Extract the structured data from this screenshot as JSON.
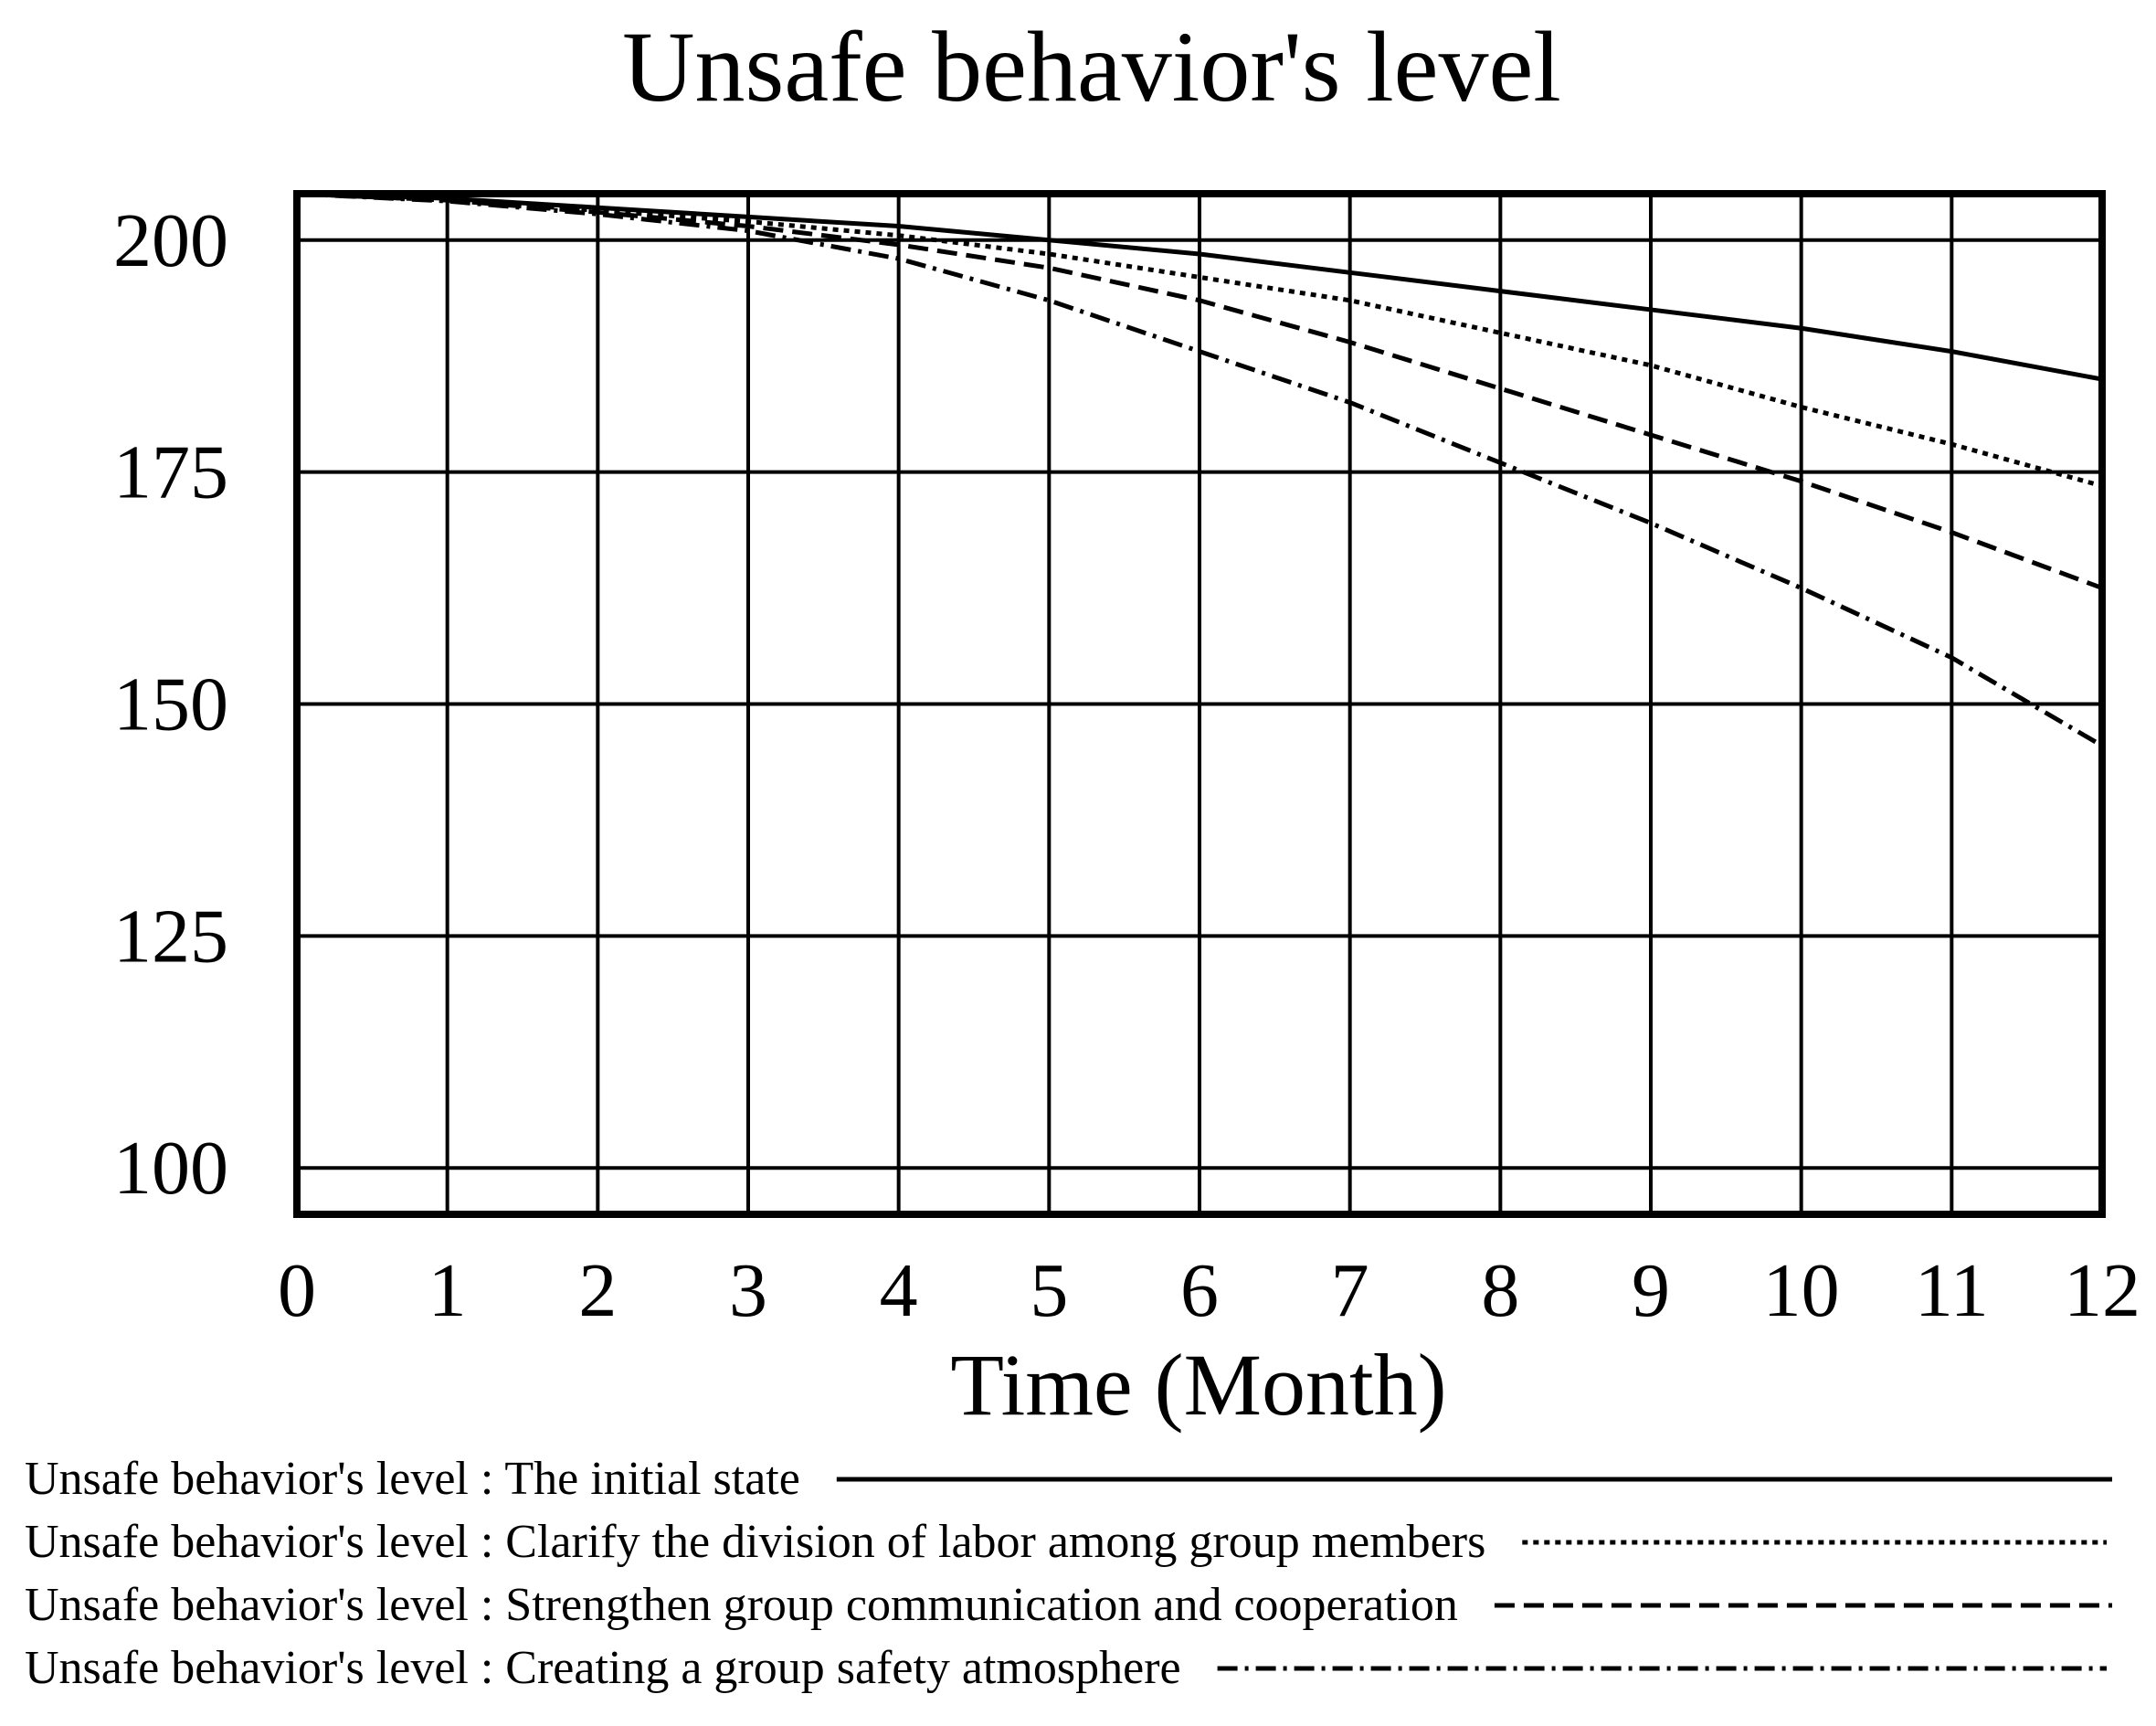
{
  "chart_data": {
    "type": "line",
    "title": "Unsafe behavior's level",
    "xlabel": "Time (Month)",
    "ylabel": "",
    "xlim": [
      0,
      12
    ],
    "ylim": [
      95,
      205
    ],
    "x_ticks": [
      "0",
      "1",
      "2",
      "3",
      "4",
      "5",
      "6",
      "7",
      "8",
      "9",
      "10",
      "11",
      "12"
    ],
    "y_ticks": [
      "100",
      "125",
      "150",
      "175",
      "200"
    ],
    "y_tick_values": [
      100,
      125,
      150,
      175,
      200
    ],
    "grid": true,
    "legend_position": "bottom",
    "x": [
      0,
      1,
      2,
      3,
      4,
      5,
      6,
      7,
      8,
      9,
      10,
      11,
      12
    ],
    "series": [
      {
        "name": "Unsafe behavior's level : The initial state",
        "style": "solid",
        "values": [
          205,
          204.5,
          203.5,
          202.5,
          201.5,
          200,
          198.5,
          196.5,
          194.5,
          192.5,
          190.5,
          188,
          185
        ]
      },
      {
        "name": "Unsafe behavior's level : Clarify the division of labor among group members",
        "style": "dotted",
        "values": [
          205,
          204.3,
          203.2,
          202,
          200.5,
          198.5,
          196,
          193.5,
          190,
          186.5,
          182,
          178,
          173.5
        ]
      },
      {
        "name": "Unsafe behavior's level : Strengthen group communication and cooperation",
        "style": "dashed",
        "values": [
          205,
          204.3,
          203,
          201.5,
          199.5,
          197,
          193.5,
          189,
          184,
          179,
          174,
          168.5,
          162.5
        ]
      },
      {
        "name": "Unsafe behavior's level : Creating a group safety atmosphere",
        "style": "dashdot",
        "values": [
          205,
          204.2,
          202.8,
          201,
          198,
          193.5,
          188,
          182.5,
          176,
          169.5,
          162.5,
          155,
          145.5
        ]
      }
    ],
    "colors": {
      "line": "#000000",
      "background": "#ffffff"
    }
  }
}
